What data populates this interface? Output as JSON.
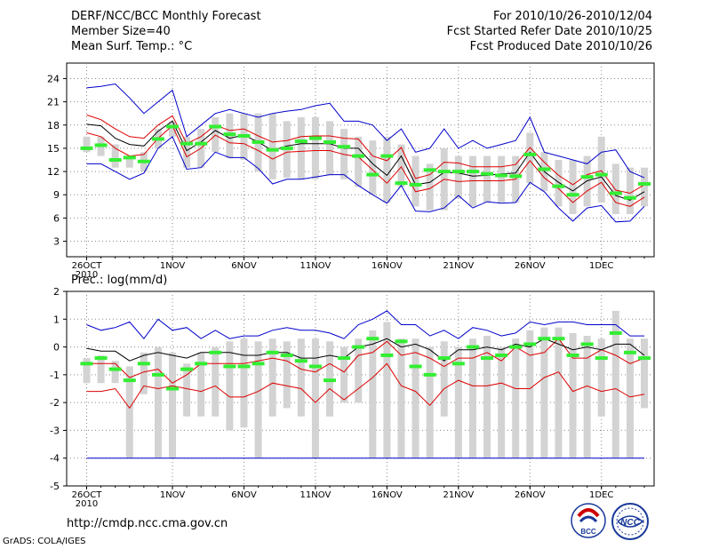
{
  "header": {
    "line1_left": "DERF/NCC/BCC Monthly Forecast",
    "line2_left": "Member Size=40",
    "line3_left": "Mean Surf. Temp.: °C",
    "line1_right": "For 2010/10/26-2010/12/04",
    "line2_right": "Fcst Started Refer Date 2010/10/25",
    "line3_right": "Fcst Produced Date 2010/10/26"
  },
  "precip_label": "Prec.: log(mm/d)",
  "footer": {
    "url": "http://cmdp.ncc.cma.gov.cn",
    "grads": "GrADS: COLA/IGES"
  },
  "logos": {
    "bcc": "BCC",
    "ncc": "NCC"
  },
  "colors": {
    "blue": "#0000cc",
    "red": "#dd0000",
    "black": "#000000",
    "green": "#33ee33",
    "bar": "#d3d3d3",
    "grid": "#888888"
  },
  "chart_data": [
    {
      "type": "line",
      "title": "Mean Surf. Temp.",
      "ylabel": "°C",
      "ylim": [
        1,
        26
      ],
      "yticks": [
        3,
        6,
        9,
        12,
        15,
        18,
        21,
        24
      ],
      "x": [
        1,
        2,
        3,
        4,
        5,
        6,
        7,
        8,
        9,
        10,
        11,
        12,
        13,
        14,
        15,
        16,
        17,
        18,
        19,
        20,
        21,
        22,
        23,
        24,
        25,
        26,
        27,
        28,
        29,
        30,
        31,
        32,
        33,
        34,
        35,
        36,
        37,
        38,
        39,
        40
      ],
      "xticks": [
        {
          "x": 1,
          "label": "26OCT",
          "sub": "2010"
        },
        {
          "x": 7,
          "label": "1NOV"
        },
        {
          "x": 12,
          "label": "6NOV"
        },
        {
          "x": 17,
          "label": "11NOV"
        },
        {
          "x": 22,
          "label": "16NOV"
        },
        {
          "x": 27,
          "label": "21NOV"
        },
        {
          "x": 32,
          "label": "26NOV"
        },
        {
          "x": 37,
          "label": "1DEC"
        }
      ],
      "series": [
        {
          "name": "ensemble max",
          "color": "blue",
          "values": [
            22.8,
            23.0,
            23.3,
            21.5,
            19.5,
            21.0,
            22.5,
            16.5,
            18.0,
            19.5,
            20.0,
            19.5,
            19.0,
            19.5,
            19.8,
            20.0,
            20.5,
            20.8,
            18.5,
            18.5,
            18.0,
            16.0,
            17.5,
            14.5,
            15.0,
            17.5,
            15.0,
            16.0,
            15.0,
            15.5,
            16.0,
            19.0,
            14.5,
            14.0,
            13.5,
            13.0,
            14.5,
            14.8,
            12.0,
            11.2
          ]
        },
        {
          "name": "upper",
          "color": "red",
          "values": [
            19.3,
            18.7,
            17.5,
            16.5,
            16.3,
            18.0,
            19.2,
            15.6,
            16.5,
            18.0,
            17.3,
            17.5,
            16.6,
            15.8,
            16.0,
            16.5,
            16.6,
            16.6,
            16.3,
            16.2,
            14.0,
            13.4,
            15.1,
            11.1,
            11.6,
            13.2,
            13.1,
            12.6,
            12.6,
            12.6,
            12.9,
            15.1,
            13.2,
            11.5,
            10.3,
            11.6,
            12.1,
            9.6,
            9.2,
            10.3
          ]
        },
        {
          "name": "ensemble mean",
          "color": "black",
          "values": [
            18.1,
            17.9,
            16.3,
            15.5,
            15.3,
            17.2,
            18.5,
            14.7,
            15.8,
            17.3,
            16.3,
            16.7,
            15.8,
            14.7,
            15.3,
            15.6,
            15.6,
            15.6,
            15.0,
            15.0,
            13.0,
            11.5,
            14.0,
            10.3,
            10.6,
            11.9,
            11.8,
            11.4,
            11.5,
            11.7,
            11.8,
            14.5,
            12.0,
            10.6,
            9.5,
            10.8,
            11.3,
            8.9,
            8.3,
            9.4
          ]
        },
        {
          "name": "lower",
          "color": "red",
          "values": [
            17.0,
            16.5,
            15.0,
            14.0,
            14.2,
            16.3,
            17.9,
            13.9,
            15.0,
            16.7,
            15.7,
            15.6,
            14.7,
            13.6,
            14.5,
            14.6,
            14.7,
            14.7,
            14.2,
            13.9,
            12.2,
            10.5,
            12.6,
            9.4,
            9.8,
            11.0,
            10.7,
            10.8,
            10.8,
            10.8,
            11.0,
            13.4,
            11.2,
            9.8,
            8.0,
            9.5,
            10.6,
            8.0,
            7.5,
            8.7
          ]
        },
        {
          "name": "ensemble min",
          "color": "blue",
          "values": [
            13.0,
            13.0,
            12.0,
            11.0,
            11.8,
            15.0,
            16.5,
            12.3,
            12.5,
            14.5,
            13.8,
            13.8,
            12.4,
            10.4,
            11.0,
            11.0,
            11.3,
            11.6,
            11.6,
            10.2,
            9.0,
            7.9,
            10.2,
            6.9,
            6.8,
            7.3,
            8.9,
            7.3,
            8.1,
            7.9,
            8.0,
            10.6,
            9.4,
            7.3,
            5.6,
            7.3,
            7.6,
            5.5,
            5.6,
            7.5
          ]
        }
      ],
      "observed": [
        15.0,
        15.4,
        13.5,
        13.8,
        13.3,
        16.2,
        17.8,
        15.6,
        15.6,
        17.8,
        16.8,
        16.6,
        15.8,
        14.8,
        15.0,
        15.9,
        16.3,
        15.8,
        15.2,
        14.0,
        11.6,
        14.0,
        10.5,
        10.3,
        12.2,
        12.0,
        12.0,
        12.0,
        11.7,
        11.5,
        11.4,
        14.2,
        12.3,
        10.1,
        9.0,
        11.3,
        11.6,
        9.2,
        8.6,
        10.4
      ],
      "bars_low": [
        14.5,
        14.0,
        12.5,
        12.5,
        12.0,
        15.0,
        16.5,
        12.5,
        12.5,
        14.5,
        13.7,
        13.5,
        12.0,
        11.0,
        11.2,
        11.0,
        11.0,
        11.5,
        11.0,
        10.0,
        9.0,
        8.0,
        10.0,
        7.5,
        7.0,
        7.0,
        8.5,
        7.5,
        8.0,
        8.0,
        8.0,
        10.5,
        9.5,
        7.5,
        6.5,
        7.5,
        8.0,
        6.5,
        6.5,
        7.5
      ],
      "bars_high": [
        16.5,
        16.5,
        15.5,
        14.0,
        14.5,
        17.5,
        18.5,
        16.5,
        17.5,
        19.0,
        19.5,
        19.5,
        19.5,
        19.5,
        18.5,
        19.0,
        19.0,
        18.5,
        17.5,
        16.5,
        16.0,
        16.5,
        15.5,
        14.0,
        13.0,
        15.0,
        14.0,
        14.0,
        14.0,
        14.0,
        14.0,
        17.0,
        14.5,
        13.5,
        13.5,
        14.0,
        16.5,
        13.0,
        12.5,
        12.5
      ]
    },
    {
      "type": "line",
      "title": "Prec.: log(mm/d)",
      "ylabel": "log(mm/d)",
      "ylim": [
        -5,
        2
      ],
      "yticks": [
        -5,
        -4,
        -3,
        -2,
        -1,
        0,
        1,
        2
      ],
      "x": [
        1,
        2,
        3,
        4,
        5,
        6,
        7,
        8,
        9,
        10,
        11,
        12,
        13,
        14,
        15,
        16,
        17,
        18,
        19,
        20,
        21,
        22,
        23,
        24,
        25,
        26,
        27,
        28,
        29,
        30,
        31,
        32,
        33,
        34,
        35,
        36,
        37,
        38,
        39,
        40
      ],
      "xticks": [
        {
          "x": 1,
          "label": "26OCT",
          "sub": "2010"
        },
        {
          "x": 7,
          "label": "1NOV"
        },
        {
          "x": 12,
          "label": "6NOV"
        },
        {
          "x": 17,
          "label": "11NOV"
        },
        {
          "x": 22,
          "label": "16NOV"
        },
        {
          "x": 27,
          "label": "21NOV"
        },
        {
          "x": 32,
          "label": "26NOV"
        },
        {
          "x": 37,
          "label": "1DEC"
        }
      ],
      "series": [
        {
          "name": "ensemble max",
          "color": "blue",
          "values": [
            0.8,
            0.6,
            0.7,
            0.9,
            0.3,
            1.0,
            0.6,
            0.7,
            0.3,
            0.6,
            0.3,
            0.4,
            0.4,
            0.6,
            0.7,
            0.6,
            0.6,
            0.5,
            0.3,
            0.8,
            1.0,
            1.3,
            0.8,
            0.8,
            0.4,
            0.6,
            0.3,
            0.7,
            0.6,
            0.4,
            0.5,
            0.9,
            0.8,
            0.9,
            0.9,
            0.8,
            0.8,
            0.8,
            0.4,
            0.4
          ]
        },
        {
          "name": "upper",
          "color": "red",
          "values": [
            -0.6,
            -0.6,
            -0.6,
            -1.1,
            -0.9,
            -0.8,
            -1.3,
            -1.0,
            -0.6,
            -0.6,
            -0.6,
            -0.6,
            -0.5,
            -0.4,
            -0.5,
            -0.8,
            -0.9,
            -0.6,
            -0.9,
            -0.3,
            -0.2,
            0.2,
            -0.3,
            -0.2,
            -0.4,
            -0.7,
            -0.4,
            -0.4,
            -0.2,
            -0.5,
            0.0,
            -0.3,
            -0.2,
            0.3,
            -0.4,
            -0.4,
            -0.1,
            -0.3,
            -0.6,
            -0.4
          ]
        },
        {
          "name": "ensemble mean",
          "color": "black",
          "values": [
            -0.05,
            -0.15,
            -0.15,
            -0.5,
            -0.3,
            -0.2,
            -0.3,
            -0.4,
            -0.2,
            -0.2,
            -0.2,
            -0.3,
            -0.3,
            -0.2,
            -0.2,
            -0.4,
            -0.4,
            -0.3,
            -0.4,
            0.0,
            0.1,
            0.3,
            0.0,
            0.1,
            -0.1,
            -0.5,
            -0.1,
            -0.1,
            0.0,
            -0.1,
            0.1,
            0.0,
            0.3,
            0.1,
            -0.1,
            0.0,
            -0.1,
            0.1,
            0.1,
            -0.3
          ]
        },
        {
          "name": "lower",
          "color": "red",
          "values": [
            -1.6,
            -1.6,
            -1.5,
            -2.2,
            -1.4,
            -1.5,
            -1.4,
            -1.5,
            -1.6,
            -1.4,
            -1.8,
            -1.8,
            -1.6,
            -1.3,
            -1.4,
            -1.5,
            -2.0,
            -1.5,
            -1.9,
            -1.5,
            -1.1,
            -0.6,
            -1.4,
            -1.6,
            -2.1,
            -1.5,
            -1.2,
            -1.4,
            -1.4,
            -1.3,
            -1.5,
            -1.5,
            -1.1,
            -0.9,
            -1.6,
            -1.4,
            -1.6,
            -1.5,
            -1.8,
            -1.7
          ]
        },
        {
          "name": "ensemble min",
          "color": "blue",
          "values": [
            -4,
            -4,
            -4,
            -4,
            -4,
            -4,
            -4,
            -4,
            -4,
            -4,
            -4,
            -4,
            -4,
            -4,
            -4,
            -4,
            -4,
            -4,
            -4,
            -4,
            -4,
            -4,
            -4,
            -4,
            -4,
            -4,
            -4,
            -4,
            -4,
            -4,
            -4,
            -4,
            -4,
            -4,
            -4,
            -4,
            -4,
            -4,
            -4,
            -4
          ]
        }
      ],
      "observed": [
        -0.6,
        -0.4,
        -0.8,
        -1.2,
        -0.6,
        -1.0,
        -1.5,
        -0.8,
        -0.6,
        -0.2,
        -0.7,
        -0.7,
        -0.6,
        -0.2,
        -0.3,
        -0.5,
        -0.7,
        -1.2,
        -0.4,
        0.0,
        0.3,
        -0.3,
        0.2,
        -0.7,
        -1.0,
        -0.4,
        -0.6,
        0.0,
        -0.4,
        -0.3,
        0.0,
        0.1,
        0.3,
        0.3,
        -0.3,
        0.1,
        -0.4,
        0.5,
        -0.2,
        -0.4
      ],
      "bars_low": [
        -1.3,
        -1.3,
        -1.3,
        -4.0,
        -1.7,
        -4.0,
        -4.0,
        -2.5,
        -2.5,
        -2.5,
        -3.0,
        -2.9,
        -4.0,
        -2.5,
        -2.2,
        -2.5,
        -4.0,
        -2.5,
        -2.0,
        -2.0,
        -4.0,
        -4.0,
        -4.0,
        -4.0,
        -4.0,
        -2.5,
        -4.0,
        -4.0,
        -4.0,
        -4.0,
        -4.0,
        -4.0,
        -4.0,
        -4.0,
        -4.0,
        -4.0,
        -2.5,
        -4.0,
        -4.0,
        -2.2
      ],
      "bars_high": [
        -0.4,
        -0.3,
        -0.5,
        -0.7,
        -0.2,
        0.0,
        -0.2,
        -0.6,
        -0.2,
        0.0,
        0.2,
        0.3,
        0.2,
        0.3,
        0.2,
        0.3,
        0.3,
        0.2,
        0.0,
        0.3,
        0.6,
        0.9,
        0.3,
        0.3,
        0.0,
        0.2,
        0.0,
        0.3,
        0.4,
        0.0,
        0.3,
        0.6,
        0.7,
        0.7,
        0.5,
        0.4,
        0.3,
        1.3,
        0.3,
        0.3
      ]
    }
  ]
}
